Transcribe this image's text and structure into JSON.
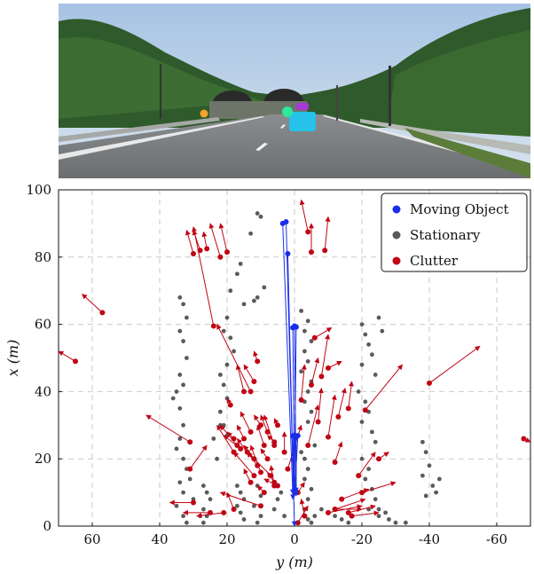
{
  "photo": {
    "description_icons": [
      "road-scene",
      "tunnel",
      "trees",
      "car-annotation",
      "pedestrian-annotation"
    ]
  },
  "chart_data": {
    "type": "scatter",
    "xlabel": "y (m)",
    "ylabel": "x (m)",
    "xlim": [
      70,
      -70
    ],
    "ylim": [
      0,
      100
    ],
    "xticks": [
      60,
      40,
      20,
      0,
      -20,
      -40,
      -60
    ],
    "yticks": [
      0,
      20,
      40,
      60,
      80,
      100
    ],
    "grid": true,
    "legend_position": "top-right",
    "series": [
      {
        "name": "Moving Object",
        "color": "#1a2ee8",
        "points": [
          [
            3.5,
            90,
            0.5,
            9.5
          ],
          [
            2.5,
            90.5,
            0,
            0
          ],
          [
            2,
            81,
            0.5,
            18.8
          ],
          [
            0.5,
            59,
            0,
            10
          ],
          [
            0,
            59.5,
            -0.5,
            10
          ],
          [
            -0.5,
            59.2,
            0,
            11
          ],
          [
            0,
            27,
            0.5,
            8
          ],
          [
            -0.5,
            26.5,
            -0.5,
            9
          ],
          [
            0.5,
            26.8,
            0,
            9.5
          ],
          [
            -1,
            26.9,
            0,
            9
          ]
        ]
      },
      {
        "name": "Stationary",
        "color": "#5a5a5a",
        "points": [
          [
            11,
            93
          ],
          [
            10,
            92
          ],
          [
            13,
            87
          ],
          [
            16,
            78
          ],
          [
            17,
            75
          ],
          [
            19,
            70
          ],
          [
            15,
            66
          ],
          [
            12,
            67
          ],
          [
            9,
            71
          ],
          [
            11,
            68
          ],
          [
            20,
            62
          ],
          [
            21,
            58
          ],
          [
            19,
            56
          ],
          [
            18,
            52
          ],
          [
            20,
            48
          ],
          [
            22,
            45
          ],
          [
            21,
            42
          ],
          [
            20,
            38
          ],
          [
            22,
            34
          ],
          [
            21,
            30
          ],
          [
            20,
            27
          ],
          [
            34,
            68
          ],
          [
            33,
            66
          ],
          [
            32,
            62
          ],
          [
            34,
            58
          ],
          [
            33,
            55
          ],
          [
            32,
            50
          ],
          [
            34,
            45
          ],
          [
            33,
            42
          ],
          [
            35,
            40
          ],
          [
            36,
            38
          ],
          [
            34,
            35
          ],
          [
            33,
            30
          ],
          [
            34,
            26
          ],
          [
            35,
            23
          ],
          [
            33,
            20
          ],
          [
            32,
            17
          ],
          [
            34,
            13
          ],
          [
            33,
            10
          ],
          [
            35,
            6
          ],
          [
            33,
            3
          ],
          [
            32,
            1
          ],
          [
            27,
            12
          ],
          [
            26,
            10
          ],
          [
            25,
            8
          ],
          [
            27,
            5
          ],
          [
            26,
            3
          ],
          [
            27,
            1
          ],
          [
            17,
            12
          ],
          [
            16,
            10
          ],
          [
            15,
            8
          ],
          [
            17,
            6
          ],
          [
            16,
            4
          ],
          [
            15,
            2
          ],
          [
            11,
            12
          ],
          [
            10,
            9
          ],
          [
            12,
            6
          ],
          [
            10,
            3
          ],
          [
            11,
            1
          ],
          [
            -2,
            64
          ],
          [
            -4,
            61
          ],
          [
            -3,
            58
          ],
          [
            -5,
            55
          ],
          [
            -3,
            52
          ],
          [
            -4,
            49
          ],
          [
            -2,
            46
          ],
          [
            -5,
            43
          ],
          [
            -4,
            40
          ],
          [
            -3,
            37
          ],
          [
            -5,
            34
          ],
          [
            -4,
            31
          ],
          [
            -3,
            20
          ],
          [
            -4,
            17
          ],
          [
            -3,
            14
          ],
          [
            -5,
            11
          ],
          [
            -4,
            8
          ],
          [
            -3,
            5
          ],
          [
            -4,
            2
          ],
          [
            -5,
            1
          ],
          [
            -2,
            22
          ],
          [
            -6,
            24
          ],
          [
            -20,
            60
          ],
          [
            -21,
            57
          ],
          [
            -22,
            54
          ],
          [
            -23,
            51
          ],
          [
            -20,
            48
          ],
          [
            -24,
            45
          ],
          [
            -19,
            40
          ],
          [
            -21,
            37
          ],
          [
            -22,
            34
          ],
          [
            -20,
            31
          ],
          [
            -23,
            28
          ],
          [
            -24,
            25
          ],
          [
            -25,
            62
          ],
          [
            -26,
            58
          ],
          [
            -20,
            20
          ],
          [
            -22,
            17
          ],
          [
            -21,
            14
          ],
          [
            -23,
            11
          ],
          [
            -24,
            8
          ],
          [
            -22,
            5
          ],
          [
            -25,
            3
          ],
          [
            -28,
            2
          ],
          [
            -38,
            25
          ],
          [
            -39,
            22
          ],
          [
            -40,
            18
          ],
          [
            -38,
            15
          ],
          [
            -41,
            12
          ],
          [
            -39,
            9
          ],
          [
            -42,
            10
          ],
          [
            -43,
            14
          ],
          [
            -10,
            4
          ],
          [
            -12,
            3
          ],
          [
            -14,
            2
          ],
          [
            -8,
            5
          ],
          [
            -6,
            3
          ],
          [
            -16,
            1
          ],
          [
            -30,
            1
          ],
          [
            -33,
            1
          ],
          [
            -25,
            5
          ],
          [
            -27,
            4
          ],
          [
            4,
            10
          ],
          [
            5,
            8
          ],
          [
            6,
            5
          ],
          [
            3,
            3
          ],
          [
            28,
            3
          ],
          [
            30,
            8
          ],
          [
            31,
            14
          ],
          [
            23,
            20
          ],
          [
            24,
            26
          ],
          [
            22,
            30
          ]
        ]
      },
      {
        "name": "Clutter",
        "color": "#c00515",
        "points": [
          [
            30,
            81,
            32,
            88
          ],
          [
            28,
            82,
            30,
            88
          ],
          [
            26,
            82.5,
            27,
            87.5
          ],
          [
            22,
            80,
            25,
            90
          ],
          [
            20,
            81.5,
            22,
            90
          ],
          [
            24,
            59.5,
            30,
            89
          ],
          [
            57,
            63.5,
            63,
            69
          ],
          [
            65,
            49,
            70,
            52
          ],
          [
            -4,
            87.5,
            -2,
            97
          ],
          [
            -5,
            81.5,
            -5,
            90
          ],
          [
            -9,
            82,
            -10,
            92
          ],
          [
            -6,
            56,
            -11,
            59
          ],
          [
            -8,
            44.5,
            -10,
            57
          ],
          [
            -5,
            42,
            -7,
            50
          ],
          [
            -2,
            37.5,
            -3,
            48
          ],
          [
            -10,
            47,
            -14,
            49
          ],
          [
            -21,
            34.5,
            -32,
            48
          ],
          [
            -40,
            42.5,
            -55,
            53.5
          ],
          [
            -42,
            78,
            -43,
            78
          ],
          [
            -68,
            26,
            -70,
            25
          ],
          [
            -7,
            31,
            -8,
            41
          ],
          [
            -10,
            26.5,
            -12,
            39
          ],
          [
            -13,
            32.5,
            -15,
            41
          ],
          [
            -16,
            35,
            -17,
            43
          ],
          [
            31,
            25,
            44,
            33
          ],
          [
            31,
            17,
            26,
            24
          ],
          [
            30,
            7,
            37,
            7
          ],
          [
            25,
            4,
            33,
            4
          ],
          [
            21,
            4,
            29,
            3
          ],
          [
            18,
            5,
            20,
            10
          ],
          [
            10,
            6,
            22,
            10
          ],
          [
            3,
            22,
            3,
            28
          ],
          [
            -4,
            24,
            -7,
            36
          ],
          [
            -12,
            19,
            -14,
            25
          ],
          [
            -19,
            15,
            -24,
            22
          ],
          [
            -25,
            20,
            -28,
            22
          ],
          [
            -20,
            10,
            -30,
            13
          ],
          [
            -14,
            8,
            -22,
            11
          ],
          [
            -12,
            5,
            -21,
            8
          ],
          [
            -16,
            4,
            -24,
            6
          ],
          [
            -17,
            3,
            -25,
            4
          ],
          [
            -10,
            4,
            -20,
            6
          ],
          [
            -12,
            5,
            -20,
            5
          ],
          [
            -3,
            3,
            -2,
            8
          ],
          [
            -1,
            1,
            -4,
            6
          ],
          [
            5,
            30,
            6,
            32
          ],
          [
            8,
            28,
            10,
            33
          ],
          [
            6,
            25,
            8,
            27
          ],
          [
            12,
            20,
            15,
            24
          ],
          [
            11,
            18,
            14,
            22
          ],
          [
            10,
            16,
            13,
            24
          ],
          [
            14,
            22,
            17,
            26
          ],
          [
            16,
            23,
            21,
            27
          ],
          [
            17,
            24,
            22,
            30
          ],
          [
            18,
            26,
            20,
            28
          ],
          [
            18,
            22,
            23,
            30
          ],
          [
            15,
            26,
            17,
            30
          ],
          [
            13,
            28,
            16,
            34
          ],
          [
            10,
            30,
            12,
            33
          ],
          [
            13,
            40,
            23,
            60
          ],
          [
            12,
            43,
            15,
            48
          ],
          [
            11,
            49,
            12,
            52
          ],
          [
            15,
            40,
            17,
            48
          ],
          [
            9,
            24,
            11,
            30
          ],
          [
            8,
            20,
            10,
            23
          ],
          [
            6,
            24,
            9,
            33
          ],
          [
            12,
            15,
            18,
            22
          ],
          [
            7,
            15,
            14,
            22
          ],
          [
            6,
            13,
            8,
            16
          ],
          [
            5,
            12,
            9,
            14
          ],
          [
            19,
            36,
            20,
            38
          ],
          [
            -1,
            10,
            -3,
            13
          ],
          [
            2,
            17,
            -2,
            30
          ],
          [
            6,
            12,
            7,
            18
          ],
          [
            9,
            10,
            11,
            12
          ],
          [
            13,
            13,
            15,
            17
          ]
        ]
      }
    ]
  }
}
